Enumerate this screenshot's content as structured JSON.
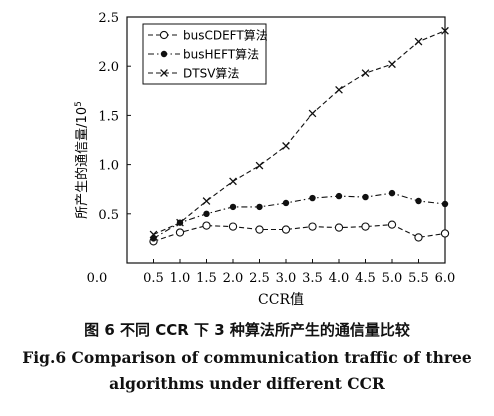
{
  "chart_data": {
    "type": "line",
    "xlabel": "CCR值",
    "ylabel": "所产生的通信量/10",
    "ylabel_exponent": "5",
    "xlim": [
      0,
      6
    ],
    "ylim": [
      0,
      2.5
    ],
    "x_ticks": [
      "0.0",
      "0.5",
      "1.0",
      "1.5",
      "2.0",
      "2.5",
      "3.0",
      "3.5",
      "4.0",
      "4.5",
      "5.0",
      "5.5",
      "6.0"
    ],
    "y_ticks": [
      "0.5",
      "1.0",
      "1.5",
      "2.0",
      "2.5"
    ],
    "grid": false,
    "legend_position": "top-left",
    "x": [
      0.5,
      1.0,
      1.5,
      2.0,
      2.5,
      3.0,
      3.5,
      4.0,
      4.5,
      5.0,
      5.5,
      6.0
    ],
    "series": [
      {
        "name": "busCDEFT算法",
        "marker": "circle",
        "dash": "dashed",
        "values": [
          0.22,
          0.31,
          0.38,
          0.37,
          0.34,
          0.34,
          0.37,
          0.36,
          0.37,
          0.39,
          0.26,
          0.3
        ]
      },
      {
        "name": "busHEFT算法",
        "marker": "dot",
        "dash": "dash-dot",
        "values": [
          0.25,
          0.41,
          0.5,
          0.57,
          0.57,
          0.61,
          0.66,
          0.68,
          0.67,
          0.71,
          0.63,
          0.6
        ]
      },
      {
        "name": "DTSV算法",
        "marker": "cross",
        "dash": "dashed",
        "values": [
          0.29,
          0.41,
          0.63,
          0.83,
          0.99,
          1.19,
          1.52,
          1.76,
          1.93,
          2.02,
          2.25,
          2.36
        ]
      }
    ]
  },
  "caption": {
    "cn": "图 6    不同 CCR 下 3 种算法所产生的通信量比较",
    "en_line1": "Fig.6    Comparison of communication traffic of three",
    "en_line2": "algorithms under different CCR"
  }
}
